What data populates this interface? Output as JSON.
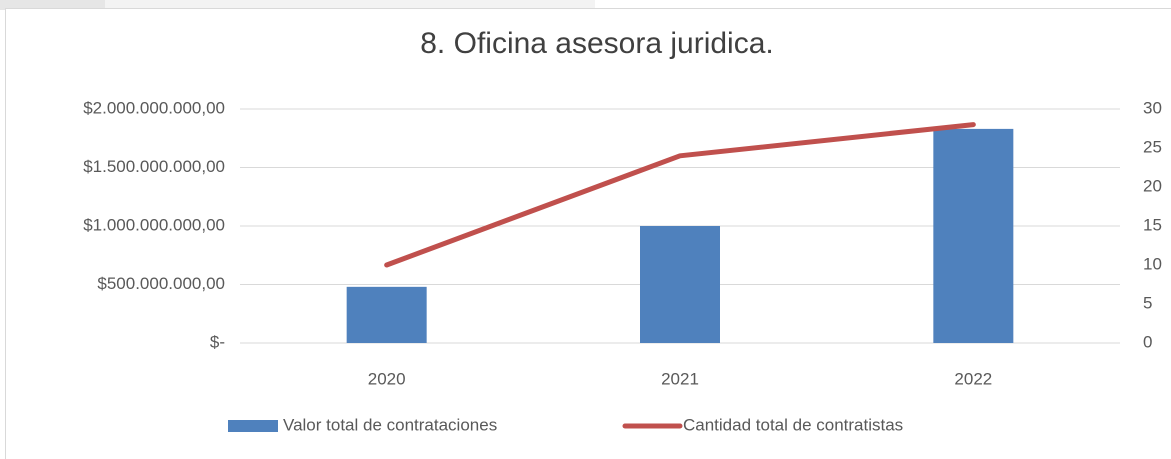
{
  "chart_data": {
    "type": "bar_line",
    "title": "8. Oficina asesora juridica.",
    "categories": [
      "2020",
      "2021",
      "2022"
    ],
    "series": [
      {
        "name": "Valor total de contrataciones",
        "type": "bar",
        "color": "#4f81bd",
        "values": [
          480000000,
          1000000000,
          1830000000
        ]
      },
      {
        "name": "Cantidad total de contratistas",
        "type": "line",
        "color": "#c0504d",
        "axis": "y2",
        "values": [
          10,
          24,
          28
        ]
      }
    ],
    "ylim": [
      0,
      2000000000
    ],
    "yticks": [
      {
        "value": 0,
        "label": "$-"
      },
      {
        "value": 500000000,
        "label": "$500.000.000,00"
      },
      {
        "value": 1000000000,
        "label": "$1.000.000.000,00"
      },
      {
        "value": 1500000000,
        "label": "$1.500.000.000,00"
      },
      {
        "value": 2000000000,
        "label": "$2.000.000.000,00"
      }
    ],
    "y2lim": [
      0,
      30
    ],
    "y2ticks": [
      0,
      5,
      10,
      15,
      20,
      25,
      30
    ],
    "grid": true,
    "legend": "bottom"
  }
}
